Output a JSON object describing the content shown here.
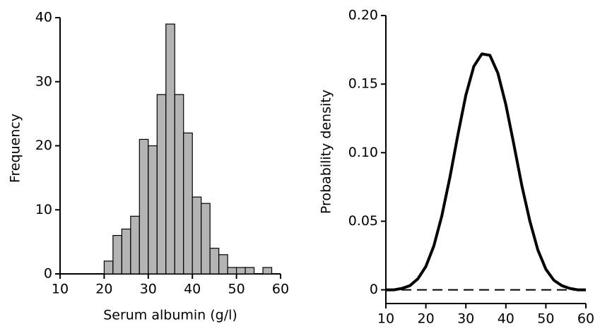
{
  "chart_data": [
    {
      "type": "histogram",
      "xlabel": "Serum albumin (g/l)",
      "ylabel": "Frequency",
      "bins": [
        20,
        22,
        24,
        26,
        28,
        30,
        32,
        34,
        36,
        38,
        40,
        42,
        44,
        46,
        48,
        50,
        52,
        54,
        56,
        58
      ],
      "values": [
        2,
        6,
        7,
        9,
        21,
        20,
        28,
        39,
        28,
        22,
        12,
        11,
        4,
        3,
        1,
        1,
        1,
        0,
        1
      ],
      "color": "#b4b4b4",
      "xlim": [
        10,
        60
      ],
      "ylim": [
        0,
        40
      ],
      "xticks": [
        10,
        20,
        30,
        40,
        50,
        60
      ],
      "yticks": [
        0,
        10,
        20,
        30,
        40
      ]
    },
    {
      "type": "line",
      "ylabel": "Probability density",
      "x": [
        10,
        12,
        14,
        16,
        18,
        20,
        22,
        24,
        26,
        28,
        30,
        32,
        34,
        36,
        38,
        40,
        42,
        44,
        46,
        48,
        50,
        52,
        54,
        56,
        58,
        60
      ],
      "values": [
        0,
        0,
        0.001,
        0.003,
        0.008,
        0.017,
        0.032,
        0.054,
        0.082,
        0.113,
        0.142,
        0.163,
        0.172,
        0.171,
        0.158,
        0.135,
        0.106,
        0.076,
        0.05,
        0.029,
        0.015,
        0.007,
        0.003,
        0.001,
        0,
        0
      ],
      "color": "#000000",
      "xlim": [
        10,
        60
      ],
      "ylim": [
        -0.01,
        0.2
      ],
      "xticks": [
        10,
        20,
        30,
        40,
        50,
        60
      ],
      "yticks": [
        0,
        0.05,
        {
          "value": 0.1,
          "label": "0.10"
        },
        0.15,
        {
          "value": 0.2,
          "label": "0.20"
        }
      ]
    }
  ]
}
